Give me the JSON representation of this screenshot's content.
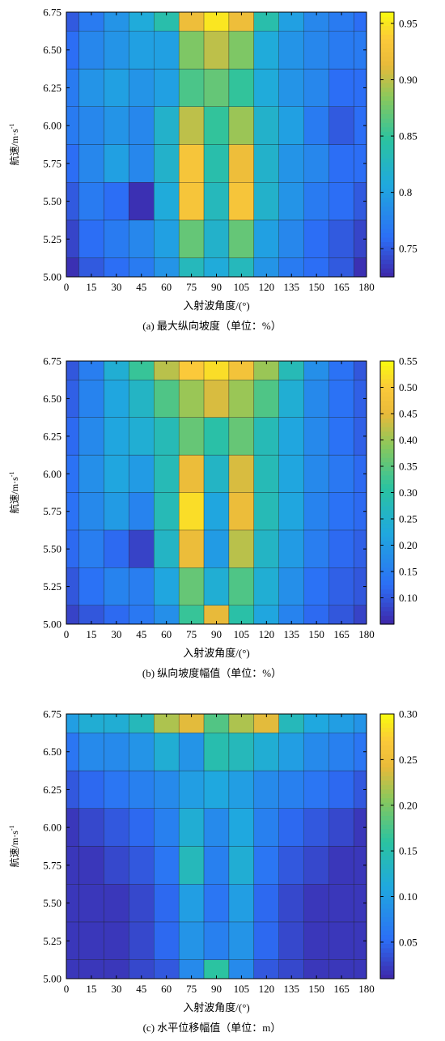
{
  "chart_data": [
    {
      "type": "heatmap",
      "caption": "(a) 最大纵向坡度（单位：%）",
      "xlabel": "入射波角度/(°)",
      "ylabel": "航速/m·s",
      "ylabel_superscript": "-1",
      "x_ticks": [
        "0",
        "15",
        "30",
        "45",
        "60",
        "75",
        "90",
        "105",
        "120",
        "135",
        "150",
        "165",
        "180"
      ],
      "y_ticks": [
        "5.00",
        "5.25",
        "5.50",
        "5.75",
        "6.00",
        "6.25",
        "6.50",
        "6.75"
      ],
      "colorbar_ticks": [
        "0.75",
        "0.8",
        "0.85",
        "0.90",
        "0.95"
      ],
      "colorbar_values": [
        0.75,
        0.8,
        0.85,
        0.9,
        0.95
      ],
      "x": [
        0,
        15,
        30,
        45,
        60,
        75,
        90,
        105,
        120,
        135,
        150,
        165,
        180
      ],
      "y": [
        5.0,
        5.25,
        5.5,
        5.75,
        6.0,
        6.25,
        6.5,
        6.75
      ],
      "zlim": [
        0.725,
        0.96
      ],
      "z": [
        [
          0.73,
          0.75,
          0.76,
          0.77,
          0.79,
          0.83,
          0.81,
          0.83,
          0.79,
          0.77,
          0.76,
          0.75,
          0.73
        ],
        [
          0.74,
          0.76,
          0.77,
          0.78,
          0.8,
          0.87,
          0.82,
          0.87,
          0.8,
          0.78,
          0.76,
          0.75,
          0.74
        ],
        [
          0.75,
          0.77,
          0.76,
          0.73,
          0.81,
          0.93,
          0.83,
          0.93,
          0.82,
          0.79,
          0.77,
          0.76,
          0.75
        ],
        [
          0.76,
          0.78,
          0.8,
          0.78,
          0.82,
          0.93,
          0.84,
          0.92,
          0.82,
          0.79,
          0.78,
          0.76,
          0.76
        ],
        [
          0.77,
          0.78,
          0.79,
          0.78,
          0.82,
          0.9,
          0.85,
          0.89,
          0.82,
          0.8,
          0.77,
          0.75,
          0.76
        ],
        [
          0.77,
          0.79,
          0.8,
          0.79,
          0.8,
          0.86,
          0.87,
          0.85,
          0.81,
          0.79,
          0.78,
          0.76,
          0.76
        ],
        [
          0.76,
          0.78,
          0.79,
          0.8,
          0.8,
          0.88,
          0.9,
          0.88,
          0.81,
          0.79,
          0.78,
          0.77,
          0.77
        ],
        [
          0.75,
          0.77,
          0.79,
          0.81,
          0.84,
          0.92,
          0.95,
          0.92,
          0.84,
          0.8,
          0.78,
          0.77,
          0.76
        ]
      ]
    },
    {
      "type": "heatmap",
      "caption": "(b) 纵向坡度幅值（单位：%）",
      "xlabel": "入射波角度/(°)",
      "ylabel": "航速/m·s",
      "ylabel_superscript": "-1",
      "x_ticks": [
        "0",
        "15",
        "30",
        "45",
        "60",
        "75",
        "90",
        "105",
        "120",
        "135",
        "150",
        "165",
        "180"
      ],
      "y_ticks": [
        "5.00",
        "5.25",
        "5.50",
        "5.75",
        "6.00",
        "6.25",
        "6.50",
        "6.75"
      ],
      "colorbar_ticks": [
        "0.10",
        "0.15",
        "0.20",
        "0.25",
        "0.30",
        "0.35",
        "0.40",
        "0.45",
        "0.50",
        "0.55"
      ],
      "colorbar_values": [
        0.1,
        0.15,
        0.2,
        0.25,
        0.3,
        0.35,
        0.4,
        0.45,
        0.5,
        0.55
      ],
      "x": [
        0,
        15,
        30,
        45,
        60,
        75,
        90,
        105,
        120,
        135,
        150,
        165,
        180
      ],
      "y": [
        5.0,
        5.25,
        5.5,
        5.75,
        6.0,
        6.25,
        6.5,
        6.75
      ],
      "zlim": [
        0.05,
        0.55
      ],
      "z": [
        [
          0.08,
          0.1,
          0.12,
          0.14,
          0.18,
          0.32,
          0.45,
          0.3,
          0.22,
          0.16,
          0.12,
          0.1,
          0.08
        ],
        [
          0.1,
          0.13,
          0.16,
          0.15,
          0.22,
          0.36,
          0.24,
          0.34,
          0.24,
          0.18,
          0.13,
          0.11,
          0.1
        ],
        [
          0.12,
          0.15,
          0.12,
          0.08,
          0.26,
          0.46,
          0.2,
          0.42,
          0.26,
          0.2,
          0.15,
          0.12,
          0.11
        ],
        [
          0.13,
          0.17,
          0.2,
          0.16,
          0.28,
          0.52,
          0.22,
          0.46,
          0.28,
          0.22,
          0.16,
          0.13,
          0.12
        ],
        [
          0.13,
          0.18,
          0.22,
          0.2,
          0.28,
          0.46,
          0.26,
          0.44,
          0.28,
          0.22,
          0.17,
          0.14,
          0.12
        ],
        [
          0.12,
          0.17,
          0.22,
          0.24,
          0.28,
          0.36,
          0.3,
          0.36,
          0.28,
          0.22,
          0.17,
          0.13,
          0.11
        ],
        [
          0.11,
          0.16,
          0.22,
          0.26,
          0.34,
          0.4,
          0.44,
          0.4,
          0.34,
          0.24,
          0.17,
          0.13,
          0.11
        ],
        [
          0.1,
          0.15,
          0.24,
          0.32,
          0.42,
          0.5,
          0.52,
          0.48,
          0.4,
          0.28,
          0.18,
          0.13,
          0.1
        ]
      ]
    },
    {
      "type": "heatmap",
      "caption": "(c) 水平位移幅值（单位：m）",
      "xlabel": "入射波角度/(°)",
      "ylabel": "航速/m·s",
      "ylabel_superscript": "-1",
      "x_ticks": [
        "0",
        "15",
        "30",
        "45",
        "60",
        "75",
        "90",
        "105",
        "120",
        "135",
        "150",
        "165",
        "180"
      ],
      "y_ticks": [
        "5.00",
        "5.25",
        "5.50",
        "5.75",
        "6.00",
        "6.25",
        "6.50",
        "6.75"
      ],
      "colorbar_ticks": [
        "0.05",
        "0.10",
        "0.15",
        "0.20",
        "0.25",
        "0.30"
      ],
      "colorbar_values": [
        0.05,
        0.1,
        0.15,
        0.2,
        0.25,
        0.3
      ],
      "x": [
        0,
        15,
        30,
        45,
        60,
        75,
        90,
        105,
        120,
        135,
        150,
        165,
        180
      ],
      "y": [
        5.0,
        5.25,
        5.5,
        5.75,
        6.0,
        6.25,
        6.5,
        6.75
      ],
      "zlim": [
        0.01,
        0.3
      ],
      "z": [
        [
          0.02,
          0.02,
          0.02,
          0.03,
          0.04,
          0.08,
          0.16,
          0.08,
          0.04,
          0.03,
          0.02,
          0.02,
          0.02
        ],
        [
          0.02,
          0.02,
          0.02,
          0.03,
          0.05,
          0.09,
          0.07,
          0.09,
          0.05,
          0.03,
          0.02,
          0.02,
          0.02
        ],
        [
          0.02,
          0.02,
          0.02,
          0.03,
          0.05,
          0.1,
          0.06,
          0.1,
          0.05,
          0.03,
          0.02,
          0.02,
          0.02
        ],
        [
          0.02,
          0.02,
          0.03,
          0.04,
          0.06,
          0.14,
          0.07,
          0.12,
          0.06,
          0.04,
          0.03,
          0.02,
          0.02
        ],
        [
          0.02,
          0.03,
          0.04,
          0.05,
          0.07,
          0.12,
          0.08,
          0.11,
          0.07,
          0.05,
          0.04,
          0.03,
          0.02
        ],
        [
          0.04,
          0.05,
          0.06,
          0.07,
          0.08,
          0.1,
          0.11,
          0.1,
          0.08,
          0.07,
          0.06,
          0.05,
          0.04
        ],
        [
          0.06,
          0.08,
          0.08,
          0.09,
          0.12,
          0.09,
          0.15,
          0.14,
          0.12,
          0.1,
          0.08,
          0.07,
          0.06
        ],
        [
          0.1,
          0.12,
          0.12,
          0.14,
          0.22,
          0.24,
          0.18,
          0.22,
          0.24,
          0.14,
          0.11,
          0.1,
          0.09
        ]
      ]
    }
  ]
}
